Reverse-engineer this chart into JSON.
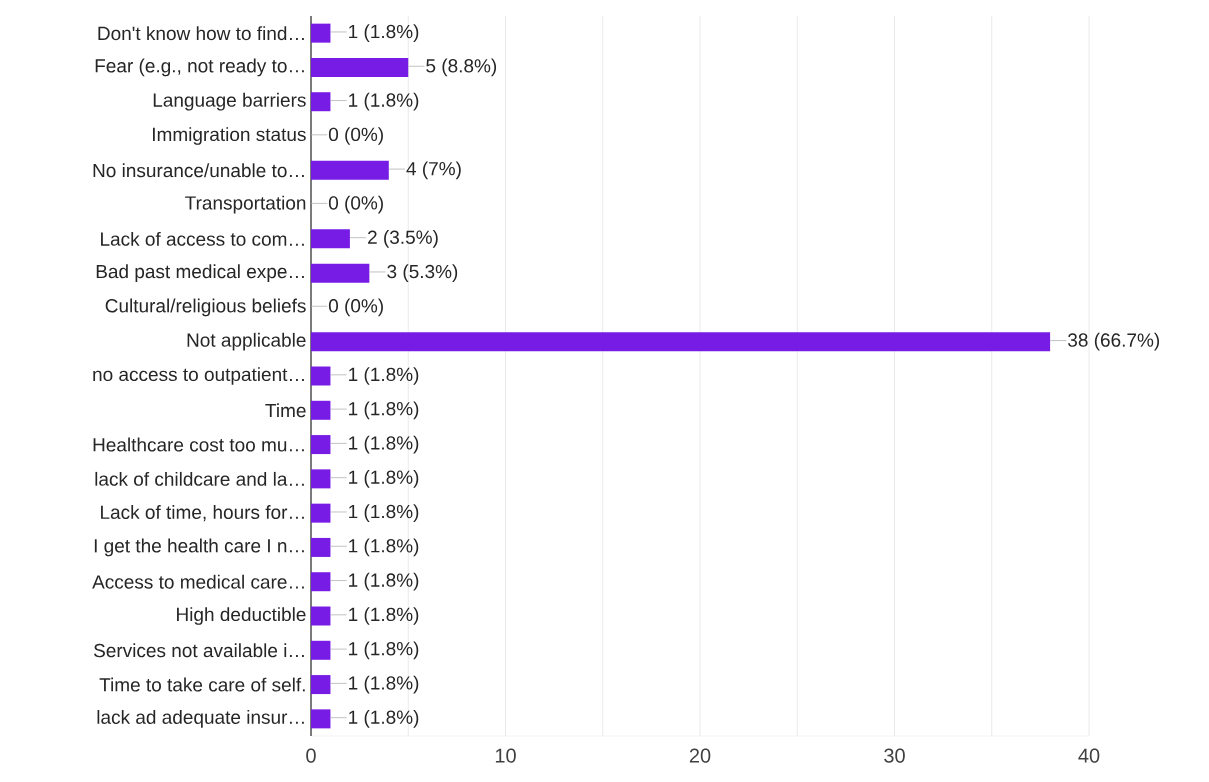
{
  "chart_data": {
    "type": "bar",
    "orientation": "horizontal",
    "categories": [
      "Don't know how to find…",
      "Fear (e.g., not ready to…",
      "Language barriers",
      "Immigration status",
      "No insurance/unable to…",
      "Transportation",
      "Lack of access to com…",
      "Bad past medical expe…",
      "Cultural/religious beliefs",
      "Not applicable",
      "no access to outpatient…",
      "Time",
      "Healthcare cost too mu…",
      "lack of childcare and la…",
      "Lack of time, hours for…",
      "I get the health care I n…",
      "Access to medical care…",
      "High deductible",
      "Services not available i…",
      "Time to take care of self.",
      "lack ad adequate insur…"
    ],
    "values": [
      1,
      5,
      1,
      0,
      4,
      0,
      2,
      3,
      0,
      38,
      1,
      1,
      1,
      1,
      1,
      1,
      1,
      1,
      1,
      1,
      1
    ],
    "value_labels": [
      "1 (1.8%)",
      "5 (8.8%)",
      "1 (1.8%)",
      "0 (0%)",
      "4 (7%)",
      "0 (0%)",
      "2 (3.5%)",
      "3 (5.3%)",
      "0 (0%)",
      "38 (66.7%)",
      "1 (1.8%)",
      "1 (1.8%)",
      "1 (1.8%)",
      "1 (1.8%)",
      "1 (1.8%)",
      "1 (1.8%)",
      "1 (1.8%)",
      "1 (1.8%)",
      "1 (1.8%)",
      "1 (1.8%)",
      "1 (1.8%)"
    ],
    "color": "#771ce4",
    "xlim": [
      0,
      40
    ],
    "xticks": [
      0,
      {
        "value": 5,
        "label": null
      },
      10,
      {
        "value": 15,
        "label": null
      },
      20,
      {
        "value": 25,
        "label": null
      },
      30,
      {
        "value": 35,
        "label": null
      },
      40
    ],
    "grid": "x"
  }
}
